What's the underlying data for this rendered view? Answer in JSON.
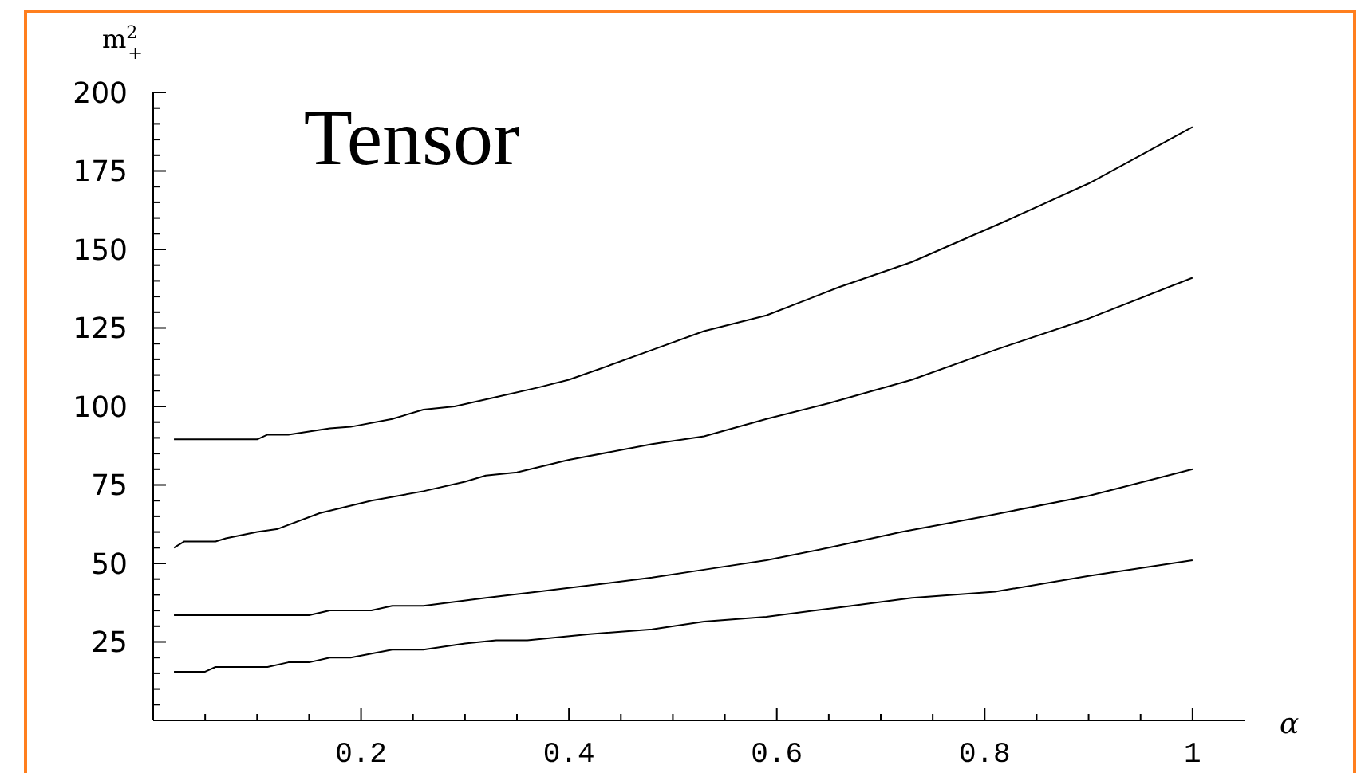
{
  "chart_data": {
    "type": "line",
    "title": "Tensor",
    "xlabel": "α",
    "ylabel": "m$^{2}$$_{+}$",
    "xlim": [
      0,
      1.05
    ],
    "ylim": [
      0,
      200
    ],
    "xticks": [
      {
        "value": 0.05,
        "label": null
      },
      {
        "value": 0.1,
        "label": null
      },
      {
        "value": 0.15,
        "label": null
      },
      {
        "value": 0.2,
        "label": "0.2"
      },
      {
        "value": 0.25,
        "label": null
      },
      {
        "value": 0.3,
        "label": null
      },
      {
        "value": 0.35,
        "label": null
      },
      {
        "value": 0.4,
        "label": "0.4"
      },
      {
        "value": 0.45,
        "label": null
      },
      {
        "value": 0.5,
        "label": null
      },
      {
        "value": 0.55,
        "label": null
      },
      {
        "value": 0.6,
        "label": "0.6"
      },
      {
        "value": 0.65,
        "label": null
      },
      {
        "value": 0.7,
        "label": null
      },
      {
        "value": 0.75,
        "label": null
      },
      {
        "value": 0.8,
        "label": "0.8"
      },
      {
        "value": 0.85,
        "label": null
      },
      {
        "value": 0.9,
        "label": null
      },
      {
        "value": 0.95,
        "label": null
      },
      {
        "value": 1,
        "label": "1"
      }
    ],
    "yticks": [
      {
        "value": 5,
        "label": null
      },
      {
        "value": 10,
        "label": null
      },
      {
        "value": 15,
        "label": null
      },
      {
        "value": 20,
        "label": null
      },
      25,
      {
        "value": 30,
        "label": null
      },
      {
        "value": 35,
        "label": null
      },
      {
        "value": 40,
        "label": null
      },
      {
        "value": 45,
        "label": null
      },
      50,
      {
        "value": 55,
        "label": null
      },
      {
        "value": 60,
        "label": null
      },
      {
        "value": 65,
        "label": null
      },
      {
        "value": 70,
        "label": null
      },
      75,
      {
        "value": 80,
        "label": null
      },
      {
        "value": 85,
        "label": null
      },
      {
        "value": 90,
        "label": null
      },
      {
        "value": 95,
        "label": null
      },
      100,
      {
        "value": 105,
        "label": null
      },
      {
        "value": 110,
        "label": null
      },
      {
        "value": 115,
        "label": null
      },
      {
        "value": 120,
        "label": null
      },
      125,
      {
        "value": 130,
        "label": null
      },
      {
        "value": 135,
        "label": null
      },
      {
        "value": 140,
        "label": null
      },
      {
        "value": 145,
        "label": null
      },
      150,
      {
        "value": 155,
        "label": null
      },
      {
        "value": 160,
        "label": null
      },
      {
        "value": 165,
        "label": null
      },
      {
        "value": 170,
        "label": null
      },
      175,
      {
        "value": 180,
        "label": null
      },
      {
        "value": 185,
        "label": null
      },
      {
        "value": 190,
        "label": null
      },
      {
        "value": 195,
        "label": null
      },
      200
    ],
    "grid": false,
    "marker": "none",
    "line_style": "solid",
    "series": [
      {
        "color": "#000000",
        "x": [
          0.02,
          0.1,
          0.11,
          0.13,
          0.17,
          0.19,
          0.23,
          0.26,
          0.29,
          0.33,
          0.37,
          0.4,
          0.43,
          0.48,
          0.53,
          0.59,
          0.66,
          0.73,
          0.82,
          0.9,
          1.0
        ],
        "values": [
          89.5,
          89.5,
          91,
          91,
          93,
          93.5,
          96,
          99,
          100,
          103,
          106,
          108.5,
          112,
          118,
          124,
          129,
          138,
          146,
          159,
          171,
          189
        ]
      },
      {
        "color": "#000000",
        "x": [
          0.02,
          0.03,
          0.06,
          0.07,
          0.1,
          0.12,
          0.16,
          0.21,
          0.26,
          0.3,
          0.32,
          0.35,
          0.4,
          0.48,
          0.53,
          0.59,
          0.65,
          0.73,
          0.81,
          0.9,
          1.0
        ],
        "values": [
          55,
          57,
          57,
          58,
          60,
          61,
          66,
          70,
          73,
          76,
          78,
          79,
          83,
          88,
          90.5,
          96,
          101,
          108.5,
          118,
          128,
          141
        ]
      },
      {
        "color": "#000000",
        "x": [
          0.02,
          0.15,
          0.17,
          0.21,
          0.23,
          0.26,
          0.32,
          0.37,
          0.42,
          0.48,
          0.53,
          0.59,
          0.65,
          0.72,
          0.8,
          0.9,
          1.0
        ],
        "values": [
          33.5,
          33.5,
          35,
          35,
          36.5,
          36.5,
          39,
          41,
          43,
          45.5,
          48,
          51,
          55,
          60,
          65,
          71.5,
          80
        ]
      },
      {
        "color": "#000000",
        "x": [
          0.02,
          0.05,
          0.06,
          0.11,
          0.13,
          0.15,
          0.17,
          0.19,
          0.23,
          0.26,
          0.3,
          0.33,
          0.36,
          0.42,
          0.48,
          0.53,
          0.59,
          0.66,
          0.73,
          0.81,
          0.9,
          1.0
        ],
        "values": [
          15.5,
          15.5,
          17,
          17,
          18.5,
          18.5,
          20,
          20,
          22.5,
          22.5,
          24.5,
          25.5,
          25.5,
          27.5,
          29,
          31.5,
          33,
          36,
          39,
          41,
          46,
          51
        ]
      }
    ]
  }
}
